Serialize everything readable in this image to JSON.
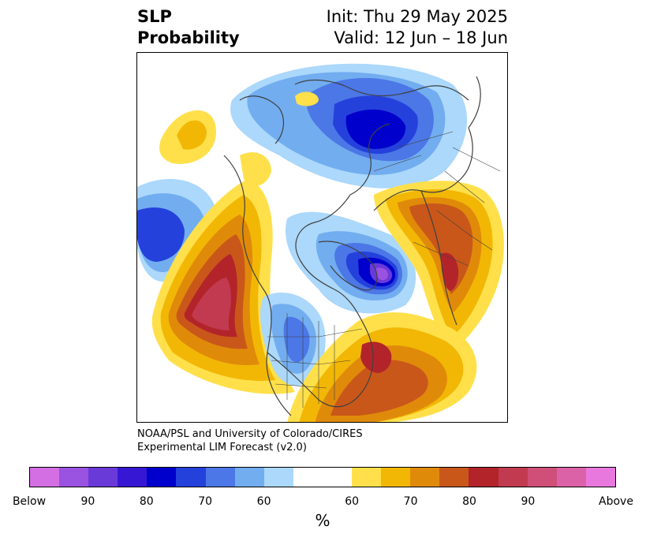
{
  "title": {
    "left_line1": "SLP",
    "left_line2": "Probability",
    "right_line1": "Init: Thu 29 May 2025",
    "right_line2": "Valid: 12 Jun – 18 Jun"
  },
  "credit": {
    "line1": "NOAA/PSL and University of Colorado/CIRES",
    "line2": "Experimental LIM Forecast (v2.0)"
  },
  "colorbar": {
    "unit": "%",
    "colors": [
      "#d36fe3",
      "#9a52e0",
      "#6a3ad9",
      "#3617d4",
      "#0000cc",
      "#2541dc",
      "#4c77e6",
      "#72adf0",
      "#abd8fb",
      "#ffffff",
      "#ffe04a",
      "#f2b705",
      "#e08a0a",
      "#c9571a",
      "#b3242a",
      "#c13a50",
      "#cf4f78",
      "#dc62a8",
      "#e878de"
    ],
    "labels": [
      "Below",
      "90",
      "80",
      "70",
      "60",
      "60",
      "70",
      "80",
      "90",
      "Above"
    ]
  },
  "map": {
    "projection": "north-polar-stereographic",
    "features": [
      "coastlines",
      "country-borders",
      "state-borders"
    ]
  }
}
